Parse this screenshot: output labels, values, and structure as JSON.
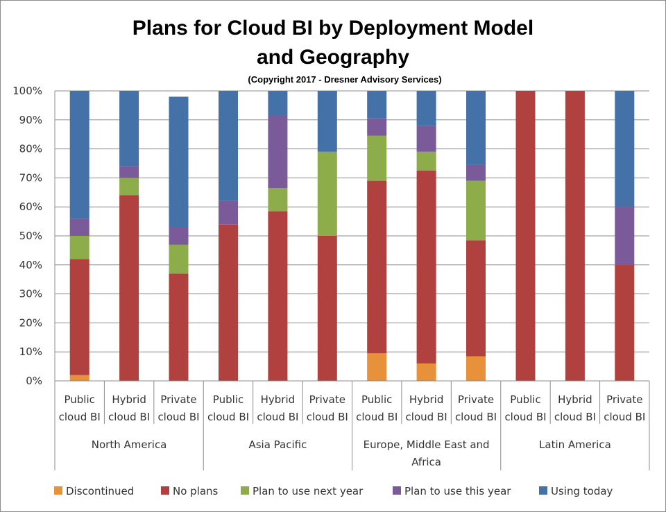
{
  "chart_data": {
    "type": "bar",
    "stacked": true,
    "title_lines": [
      "Plans for Cloud BI by Deployment Model",
      "and Geography"
    ],
    "subtitle": "(Copyright 2017 - Dresner Advisory Services)",
    "ylim": [
      0,
      100
    ],
    "yticks": [
      "0%",
      "10%",
      "20%",
      "30%",
      "40%",
      "50%",
      "60%",
      "70%",
      "80%",
      "90%",
      "100%"
    ],
    "grid": true,
    "legend_position": "bottom",
    "groups": [
      {
        "name_lines": [
          "North America"
        ],
        "categories": [
          [
            "Public",
            "cloud BI"
          ],
          [
            "Hybrid",
            "cloud BI"
          ],
          [
            "Private",
            "cloud BI"
          ]
        ]
      },
      {
        "name_lines": [
          "Asia Pacific"
        ],
        "categories": [
          [
            "Public",
            "cloud BI"
          ],
          [
            "Hybrid",
            "cloud BI"
          ],
          [
            "Private",
            "cloud BI"
          ]
        ]
      },
      {
        "name_lines": [
          "Europe, Middle East and",
          "Africa"
        ],
        "categories": [
          [
            "Public",
            "cloud BI"
          ],
          [
            "Hybrid",
            "cloud BI"
          ],
          [
            "Private",
            "cloud BI"
          ]
        ]
      },
      {
        "name_lines": [
          "Latin America"
        ],
        "categories": [
          [
            "Public",
            "cloud BI"
          ],
          [
            "Hybrid",
            "cloud BI"
          ],
          [
            "Private",
            "cloud BI"
          ]
        ]
      }
    ],
    "series": [
      {
        "name": "Discontinued",
        "color": "#e8913b",
        "values": [
          2,
          0,
          0,
          0,
          0,
          0,
          9.5,
          6,
          8.5,
          0,
          0,
          0
        ]
      },
      {
        "name": "No plans",
        "color": "#b0413e",
        "values": [
          40,
          64,
          37,
          54,
          58.5,
          50,
          59.5,
          66.5,
          40,
          100,
          100,
          40
        ]
      },
      {
        "name": "Plan to use next year",
        "color": "#8cad4a",
        "values": [
          8,
          6,
          10,
          0,
          8,
          29,
          15.5,
          6.5,
          20.5,
          0,
          0,
          0
        ]
      },
      {
        "name": "Plan to use this year",
        "color": "#7a5a98",
        "values": [
          6,
          4,
          6,
          8,
          25,
          0,
          6,
          9,
          5.5,
          0,
          0,
          20
        ]
      },
      {
        "name": "Using today",
        "color": "#4471a8",
        "values": [
          44,
          26,
          45,
          38,
          8.5,
          21,
          9.5,
          12,
          25.5,
          0,
          0,
          40
        ]
      }
    ]
  }
}
